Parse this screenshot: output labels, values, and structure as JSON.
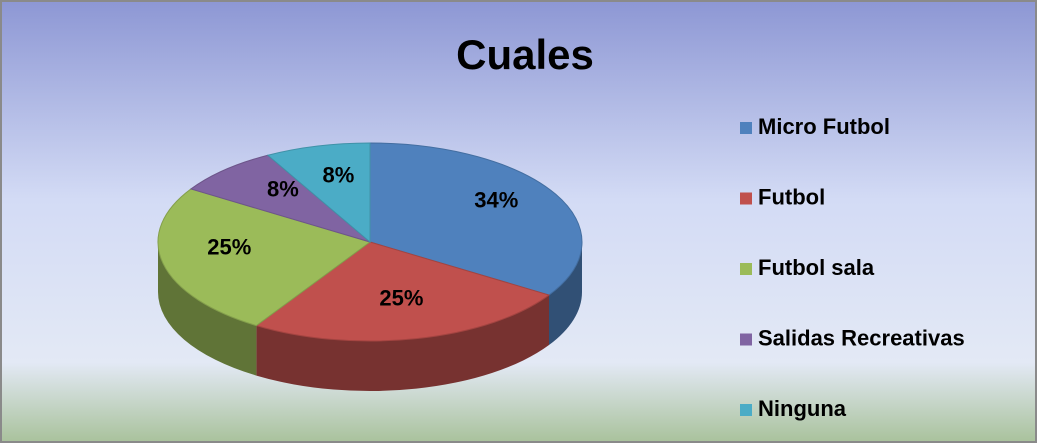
{
  "chart_data": {
    "type": "pie",
    "title": "Cuales",
    "categories": [
      "Micro Futbol",
      "Futbol",
      "Futbol sala",
      "Salidas Recreativas",
      "Ninguna"
    ],
    "values": [
      34,
      25,
      25,
      8,
      8
    ],
    "value_labels": [
      "34%",
      "25%",
      "25%",
      "8%",
      "8%"
    ],
    "colors": [
      "#4f81bd",
      "#c0504d",
      "#9bbb59",
      "#8064a2",
      "#4bacc6"
    ],
    "legend": "right"
  }
}
